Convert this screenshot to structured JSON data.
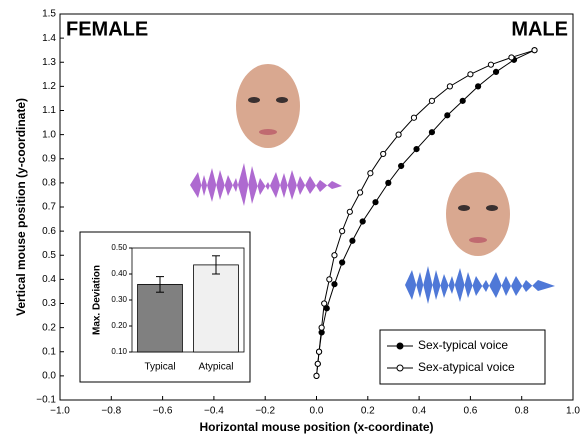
{
  "chart_data": [
    {
      "type": "line",
      "xlabel": "Horizontal mouse position (x-coordinate)",
      "ylabel": "Vertical mouse position (y-coordinate)",
      "annotations": [
        "FEMALE",
        "MALE"
      ],
      "xlim": [
        -1.0,
        1.0
      ],
      "xticks": [
        {
          "value": -1.0,
          "label": "−1.0"
        },
        {
          "value": -0.8,
          "label": "−0.8"
        },
        {
          "value": -0.6,
          "label": "−0.6"
        },
        {
          "value": -0.4,
          "label": "−0.4"
        },
        {
          "value": -0.2,
          "label": "−0.2"
        },
        {
          "value": 0,
          "label": "0.0"
        },
        0.2,
        0.4,
        0.6,
        0.8,
        {
          "value": 1.0,
          "label": "1.0"
        }
      ],
      "ylim": [
        -0.1,
        1.5
      ],
      "yticks": [
        {
          "value": -0.1,
          "label": "−0.1"
        },
        {
          "value": 0,
          "label": "0.0"
        },
        0.1,
        0.2,
        0.3,
        0.4,
        0.5,
        0.6,
        0.7,
        0.8,
        0.9,
        {
          "value": 1.0,
          "label": "1.0"
        },
        1.1,
        1.2,
        1.3,
        1.4,
        1.5
      ],
      "series": [
        {
          "name": "Sex-typical voice",
          "color": "#000000",
          "marker_fill": "#000000",
          "x": [
            0,
            0.005,
            0.01,
            0.02,
            0.04,
            0.07,
            0.1,
            0.14,
            0.18,
            0.23,
            0.28,
            0.33,
            0.39,
            0.45,
            0.51,
            0.57,
            0.63,
            0.7,
            0.77,
            0.85
          ],
          "values": [
            0,
            0.05,
            0.1,
            0.18,
            0.28,
            0.38,
            0.47,
            0.56,
            0.64,
            0.72,
            0.8,
            0.87,
            0.94,
            1.01,
            1.08,
            1.14,
            1.2,
            1.26,
            1.31,
            1.35
          ]
        },
        {
          "name": "Sex-atypical voice",
          "color": "#000000",
          "marker_fill": "#ffffff",
          "x": [
            0,
            0.005,
            0.01,
            0.02,
            0.03,
            0.05,
            0.07,
            0.1,
            0.13,
            0.17,
            0.21,
            0.26,
            0.32,
            0.38,
            0.45,
            0.52,
            0.6,
            0.68,
            0.76,
            0.85
          ],
          "values": [
            0,
            0.05,
            0.1,
            0.2,
            0.3,
            0.4,
            0.5,
            0.6,
            0.68,
            0.76,
            0.84,
            0.92,
            1.0,
            1.07,
            1.14,
            1.2,
            1.25,
            1.29,
            1.32,
            1.35
          ]
        }
      ],
      "legend": "lower right"
    },
    {
      "type": "bar",
      "ylabel": "Max. Deviation",
      "categories": [
        "Typical",
        "Atypical"
      ],
      "values": [
        0.36,
        0.435
      ],
      "errors": [
        0.03,
        0.035
      ],
      "colors": [
        "#808080",
        "#f0f0f0"
      ],
      "ylim": [
        0.1,
        0.5
      ],
      "yticks": [
        {
          "value": 0.1,
          "label": "0.10"
        },
        {
          "value": 0.2,
          "label": "0.20"
        },
        {
          "value": 0.3,
          "label": "0.30"
        },
        {
          "value": 0.4,
          "label": "0.40"
        },
        {
          "value": 0.5,
          "label": "0.50"
        }
      ]
    }
  ]
}
